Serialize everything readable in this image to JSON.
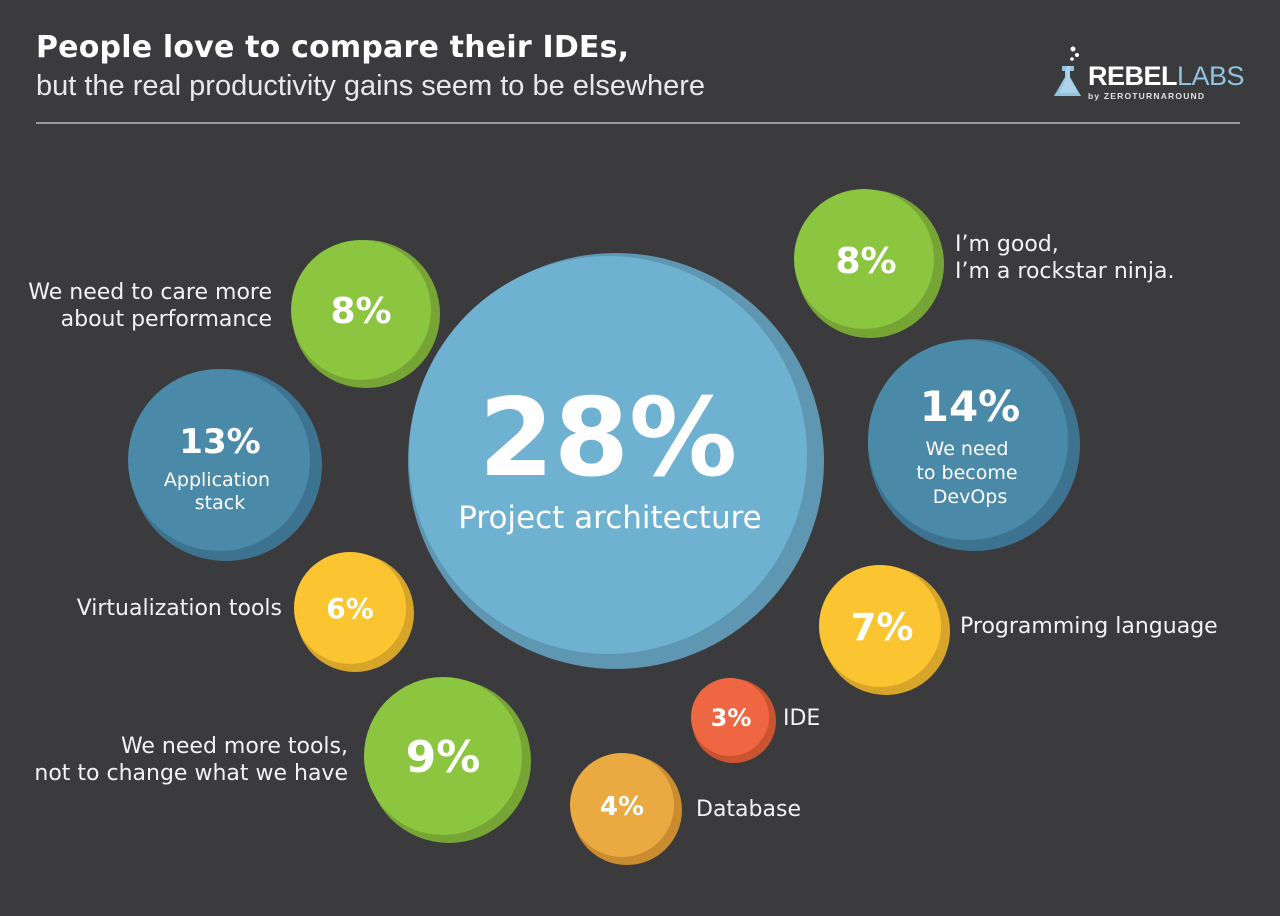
{
  "title": "People love to compare their IDEs,",
  "subtitle": "but the real productivity gains seem to be elsewhere",
  "logo": {
    "main_bold": "REBEL",
    "main_light": "LABS",
    "sub": "by ZEROTURNAROUND"
  },
  "colors": {
    "background": "#3b3b3d",
    "light_blue": "#6fb1d0",
    "dark_blue": "#4a8aa8",
    "green": "#8cc540",
    "yellow": "#fbc531",
    "orange": "#eaa941",
    "red": "#ee6742"
  },
  "chart_data": {
    "type": "bubble",
    "unit": "%",
    "series": [
      {
        "label": "Project architecture",
        "value": 28,
        "color": "light_blue"
      },
      {
        "label": "We need to become DevOps",
        "value": 14,
        "color": "dark_blue"
      },
      {
        "label": "Application stack",
        "value": 13,
        "color": "dark_blue"
      },
      {
        "label": "We need more tools, not to change what we have",
        "value": 9,
        "color": "green"
      },
      {
        "label": "We need to care more about performance",
        "value": 8,
        "color": "green"
      },
      {
        "label": "I'm good, I'm a rockstar ninja.",
        "value": 8,
        "color": "green"
      },
      {
        "label": "Programming language",
        "value": 7,
        "color": "yellow"
      },
      {
        "label": "Virtualization tools",
        "value": 6,
        "color": "yellow"
      },
      {
        "label": "Database",
        "value": 4,
        "color": "orange"
      },
      {
        "label": "IDE",
        "value": 3,
        "color": "red"
      }
    ]
  },
  "bubbles": {
    "project_architecture": {
      "value": "28%",
      "label": "Project architecture"
    },
    "devops": {
      "value": "14%",
      "label": "We need\nto become\nDevOps"
    },
    "app_stack": {
      "value": "13%",
      "label": "Application\nstack"
    },
    "performance": {
      "value": "8%",
      "label": "We need to care more\nabout performance"
    },
    "rockstar": {
      "value": "8%",
      "label": "I’m good,\nI’m a rockstar ninja."
    },
    "programming_language": {
      "value": "7%",
      "label": "Programming language"
    },
    "virtualization": {
      "value": "6%",
      "label": "Virtualization tools"
    },
    "more_tools": {
      "value": "9%",
      "label": "We need more tools,\nnot to change what we have"
    },
    "ide": {
      "value": "3%",
      "label": "IDE"
    },
    "database": {
      "value": "4%",
      "label": "Database"
    }
  }
}
